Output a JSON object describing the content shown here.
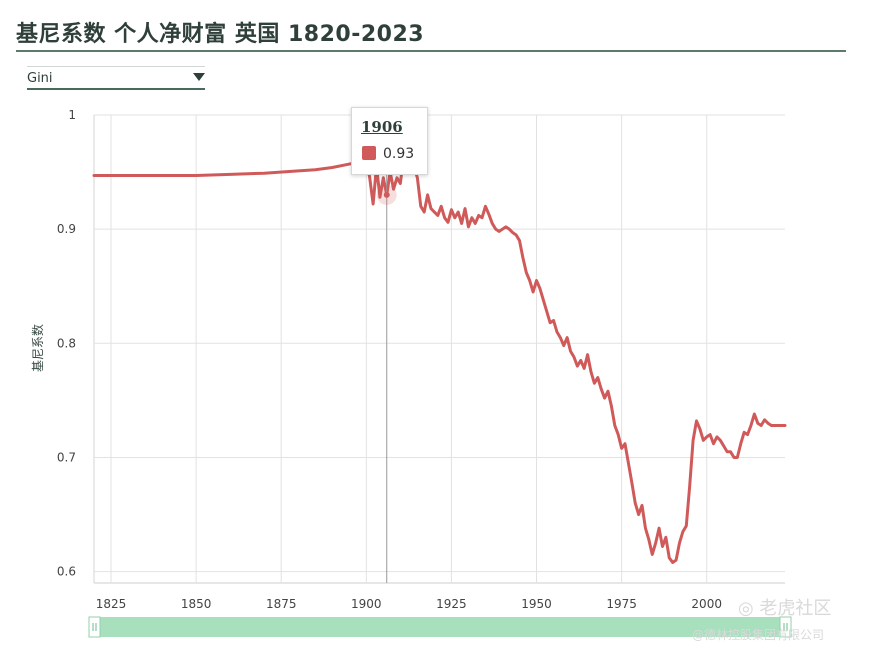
{
  "title": "基尼系数 个人净财富 英国 1820-2023",
  "selector": {
    "value": "Gini"
  },
  "tooltip": {
    "year": "1906",
    "value": "0.93",
    "color": "#d05a5a"
  },
  "watermark": {
    "logo": "◎ 老虎社区",
    "subtitle": "@德林控股集团有限公司"
  },
  "chart_data": {
    "type": "line",
    "ylabel": "基尼系数",
    "xlabel": "",
    "xlim": [
      1820,
      2023
    ],
    "ylim": [
      0.59,
      1.0
    ],
    "x_ticks": [
      1825,
      1850,
      1875,
      1900,
      1925,
      1950,
      1975,
      2000
    ],
    "y_ticks": [
      0.6,
      0.7,
      0.8,
      0.9,
      1
    ],
    "grid": true,
    "line_color": "#d05a5a",
    "series": [
      {
        "x": [
          1820,
          1830,
          1840,
          1850,
          1860,
          1870,
          1880,
          1885,
          1890,
          1895,
          1898,
          1900,
          1901,
          1902,
          1903,
          1904,
          1905,
          1906,
          1907,
          1908,
          1909,
          1910,
          1911,
          1912,
          1913,
          1914,
          1915,
          1916,
          1917,
          1918,
          1919,
          1920,
          1921,
          1922,
          1923,
          1924,
          1925,
          1926,
          1927,
          1928,
          1929,
          1930,
          1931,
          1932,
          1933,
          1934,
          1935,
          1936,
          1937,
          1938,
          1939,
          1940,
          1941,
          1942,
          1943,
          1944,
          1945,
          1946,
          1947,
          1948,
          1949,
          1950,
          1951,
          1952,
          1953,
          1954,
          1955,
          1956,
          1957,
          1958,
          1959,
          1960,
          1961,
          1962,
          1963,
          1964,
          1965,
          1966,
          1967,
          1968,
          1969,
          1970,
          1971,
          1972,
          1973,
          1974,
          1975,
          1976,
          1977,
          1978,
          1979,
          1980,
          1981,
          1982,
          1983,
          1984,
          1985,
          1986,
          1987,
          1988,
          1989,
          1990,
          1991,
          1992,
          1993,
          1994,
          1995,
          1996,
          1997,
          1998,
          1999,
          2000,
          2001,
          2002,
          2003,
          2004,
          2005,
          2006,
          2007,
          2008,
          2009,
          2010,
          2011,
          2012,
          2013,
          2014,
          2015,
          2016,
          2017,
          2018,
          2019,
          2020,
          2021,
          2022,
          2023
        ],
        "y": [
          0.947,
          0.947,
          0.947,
          0.947,
          0.948,
          0.949,
          0.951,
          0.952,
          0.954,
          0.957,
          0.959,
          0.961,
          0.945,
          0.922,
          0.955,
          0.928,
          0.945,
          0.93,
          0.95,
          0.935,
          0.945,
          0.94,
          0.965,
          0.95,
          0.958,
          0.955,
          0.945,
          0.92,
          0.915,
          0.93,
          0.918,
          0.915,
          0.912,
          0.92,
          0.91,
          0.906,
          0.917,
          0.91,
          0.915,
          0.905,
          0.918,
          0.902,
          0.91,
          0.905,
          0.912,
          0.91,
          0.92,
          0.913,
          0.905,
          0.9,
          0.898,
          0.9,
          0.902,
          0.9,
          0.897,
          0.895,
          0.89,
          0.875,
          0.862,
          0.855,
          0.845,
          0.855,
          0.848,
          0.838,
          0.828,
          0.818,
          0.82,
          0.81,
          0.805,
          0.798,
          0.805,
          0.793,
          0.788,
          0.78,
          0.785,
          0.778,
          0.79,
          0.775,
          0.765,
          0.77,
          0.76,
          0.752,
          0.758,
          0.745,
          0.728,
          0.72,
          0.708,
          0.712,
          0.695,
          0.678,
          0.66,
          0.65,
          0.658,
          0.638,
          0.628,
          0.615,
          0.625,
          0.638,
          0.622,
          0.63,
          0.612,
          0.608,
          0.61,
          0.625,
          0.635,
          0.64,
          0.675,
          0.715,
          0.732,
          0.725,
          0.715,
          0.718,
          0.72,
          0.712,
          0.718,
          0.715,
          0.71,
          0.705,
          0.705,
          0.7,
          0.7,
          0.712,
          0.722,
          0.72,
          0.728,
          0.738,
          0.73,
          0.728,
          0.733,
          0.73,
          0.728,
          0.728,
          0.728,
          0.728,
          0.728
        ]
      }
    ],
    "highlight": {
      "x": 1906,
      "y": 0.93
    }
  }
}
